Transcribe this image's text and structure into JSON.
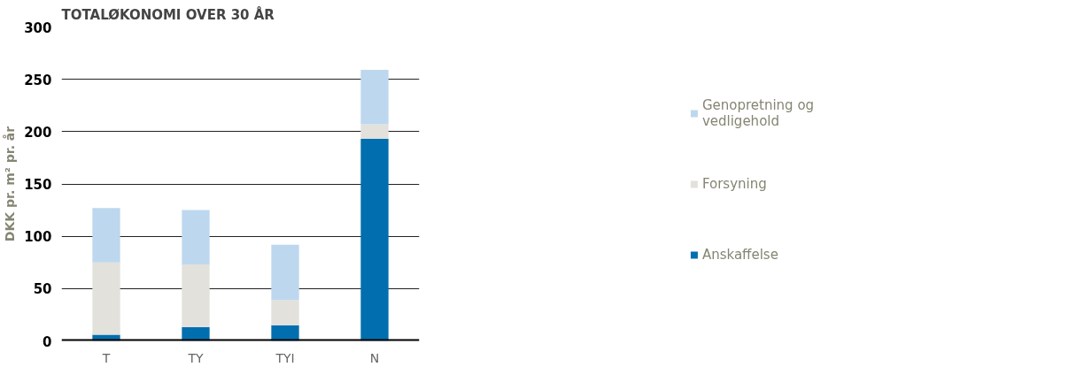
{
  "chart_data": {
    "type": "bar",
    "stacked": true,
    "title": "TOTALØKONOMI OVER 30 ÅR",
    "ylabel": "DKK pr. m² pr. år",
    "categories": [
      "T",
      "TY",
      "TYI",
      "N"
    ],
    "series": [
      {
        "name": "Anskaffelse",
        "color": "#006eaf",
        "values": [
          6,
          13,
          15,
          193
        ]
      },
      {
        "name": "Forsyning",
        "color": "#e2e1dc",
        "values": [
          69,
          60,
          24,
          14
        ]
      },
      {
        "name": "Genopretning og vedligehold",
        "color": "#bdd7ee",
        "values": [
          52,
          52,
          53,
          52
        ]
      }
    ],
    "ylim": [
      0,
      300
    ],
    "yticks": [
      0,
      50,
      100,
      150,
      200,
      250,
      300
    ],
    "grid": "y",
    "legend": "right"
  }
}
